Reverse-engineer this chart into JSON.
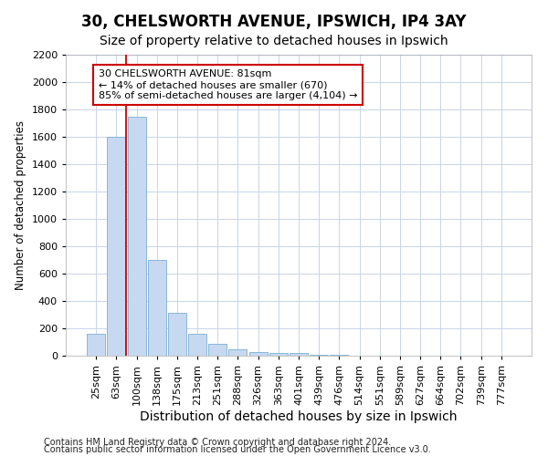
{
  "title1": "30, CHELSWORTH AVENUE, IPSWICH, IP4 3AY",
  "title2": "Size of property relative to detached houses in Ipswich",
  "xlabel": "Distribution of detached houses by size in Ipswich",
  "ylabel": "Number of detached properties",
  "categories": [
    "25sqm",
    "63sqm",
    "100sqm",
    "138sqm",
    "175sqm",
    "213sqm",
    "251sqm",
    "288sqm",
    "326sqm",
    "363sqm",
    "401sqm",
    "439sqm",
    "476sqm",
    "514sqm",
    "551sqm",
    "589sqm",
    "627sqm",
    "664sqm",
    "702sqm",
    "739sqm",
    "777sqm"
  ],
  "values": [
    160,
    1600,
    1750,
    700,
    315,
    160,
    85,
    47,
    30,
    20,
    18,
    10,
    4,
    0,
    0,
    0,
    0,
    0,
    0,
    0,
    0
  ],
  "bar_color": "#c6d9f0",
  "bar_edge_color": "#7bafd4",
  "vline_x": 1.5,
  "vline_color": "#cc0000",
  "annotation_text": "30 CHELSWORTH AVENUE: 81sqm\n← 14% of detached houses are smaller (670)\n85% of semi-detached houses are larger (4,104) →",
  "annotation_box_color": "#ffffff",
  "annotation_box_edge_color": "#cc0000",
  "ylim": [
    0,
    2200
  ],
  "yticks": [
    0,
    200,
    400,
    600,
    800,
    1000,
    1200,
    1400,
    1600,
    1800,
    2000,
    2200
  ],
  "footnote1": "Contains HM Land Registry data © Crown copyright and database right 2024.",
  "footnote2": "Contains public sector information licensed under the Open Government Licence v3.0.",
  "background_color": "#ffffff",
  "grid_color": "#c8d4e8",
  "title1_fontsize": 12,
  "title2_fontsize": 10,
  "xlabel_fontsize": 10,
  "ylabel_fontsize": 8.5,
  "tick_fontsize": 8,
  "annotation_fontsize": 8,
  "footnote_fontsize": 7
}
